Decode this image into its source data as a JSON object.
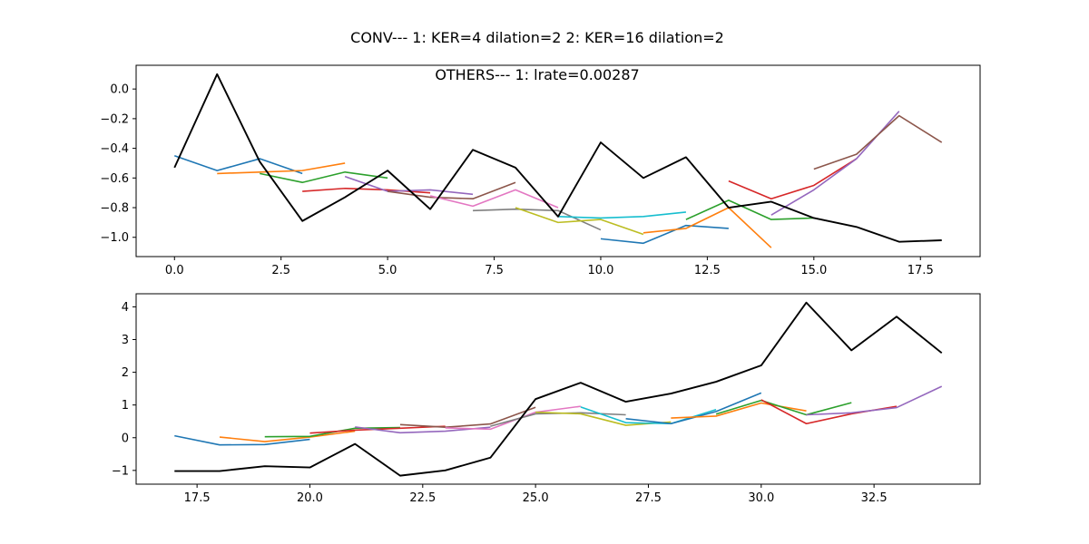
{
  "suptitle": "CONV--- 1: KER=4   dilation=2   2: KER=16   dilation=2",
  "palette": [
    "#1f77b4",
    "#ff7f0e",
    "#2ca02c",
    "#d62728",
    "#9467bd",
    "#8c564b",
    "#e377c2",
    "#7f7f7f",
    "#bcbd22",
    "#17becf"
  ],
  "chart_data": [
    {
      "type": "line",
      "title": "OTHERS--- 1: lrate=0.00287",
      "xlim": [
        -0.9,
        18.9
      ],
      "ylim": [
        -1.13,
        0.16
      ],
      "xticks": [
        0.0,
        2.5,
        5.0,
        7.5,
        10.0,
        12.5,
        15.0,
        17.5
      ],
      "xtick_labels": [
        "0.0",
        "2.5",
        "5.0",
        "7.5",
        "10.0",
        "12.5",
        "15.0",
        "17.5"
      ],
      "yticks": [
        0.0,
        -0.2,
        -0.4,
        -0.6,
        -0.8,
        -1.0
      ],
      "ytick_labels": [
        "0.0",
        "−0.2",
        "−0.4",
        "−0.6",
        "−0.8",
        "−1.0"
      ],
      "main_series": {
        "name": "actual",
        "color": "#000000",
        "x": [
          0,
          1,
          2,
          3,
          4,
          5,
          6,
          7,
          8,
          9,
          10,
          11,
          12,
          13,
          14,
          15,
          16,
          17,
          18
        ],
        "y": [
          -0.53,
          0.1,
          -0.49,
          -0.89,
          -0.73,
          -0.55,
          -0.81,
          -0.41,
          -0.53,
          -0.86,
          -0.36,
          -0.6,
          -0.46,
          -0.8,
          -0.76,
          -0.87,
          -0.93,
          -1.03,
          -1.02
        ]
      },
      "series": [
        {
          "x": [
            0,
            1,
            2,
            3
          ],
          "y": [
            -0.45,
            -0.55,
            -0.47,
            -0.57
          ]
        },
        {
          "x": [
            1,
            2,
            3,
            4
          ],
          "y": [
            -0.57,
            -0.56,
            -0.55,
            -0.5
          ]
        },
        {
          "x": [
            2,
            3,
            4,
            5
          ],
          "y": [
            -0.57,
            -0.63,
            -0.56,
            -0.6
          ]
        },
        {
          "x": [
            3,
            4,
            5,
            6
          ],
          "y": [
            -0.69,
            -0.67,
            -0.68,
            -0.7
          ]
        },
        {
          "x": [
            4,
            5,
            6,
            7
          ],
          "y": [
            -0.59,
            -0.69,
            -0.68,
            -0.71
          ]
        },
        {
          "x": [
            5,
            6,
            7,
            8
          ],
          "y": [
            -0.69,
            -0.73,
            -0.74,
            -0.63
          ]
        },
        {
          "x": [
            6,
            7,
            8,
            9
          ],
          "y": [
            -0.72,
            -0.79,
            -0.68,
            -0.8
          ]
        },
        {
          "x": [
            7,
            8,
            9,
            10
          ],
          "y": [
            -0.82,
            -0.81,
            -0.82,
            -0.95
          ]
        },
        {
          "x": [
            8,
            9,
            10,
            11
          ],
          "y": [
            -0.8,
            -0.9,
            -0.88,
            -0.98
          ]
        },
        {
          "x": [
            9,
            10,
            11,
            12
          ],
          "y": [
            -0.86,
            -0.87,
            -0.86,
            -0.83
          ]
        },
        {
          "x": [
            10,
            11,
            12,
            13
          ],
          "y": [
            -1.01,
            -1.04,
            -0.92,
            -0.94
          ]
        },
        {
          "x": [
            11,
            12,
            13,
            14
          ],
          "y": [
            -0.97,
            -0.94,
            -0.8,
            -1.07
          ]
        },
        {
          "x": [
            12,
            13,
            14,
            15
          ],
          "y": [
            -0.88,
            -0.75,
            -0.88,
            -0.87
          ]
        },
        {
          "x": [
            13,
            14,
            15,
            16
          ],
          "y": [
            -0.62,
            -0.74,
            -0.65,
            -0.47
          ]
        },
        {
          "x": [
            14,
            15,
            16,
            17
          ],
          "y": [
            -0.85,
            -0.68,
            -0.47,
            -0.15
          ]
        },
        {
          "x": [
            15,
            16,
            17,
            18
          ],
          "y": [
            -0.54,
            -0.44,
            -0.18,
            -0.36
          ]
        }
      ]
    },
    {
      "type": "line",
      "title": "",
      "xlim": [
        16.15,
        34.85
      ],
      "ylim": [
        -1.42,
        4.4
      ],
      "xticks": [
        17.5,
        20.0,
        22.5,
        25.0,
        27.5,
        30.0,
        32.5
      ],
      "xtick_labels": [
        "17.5",
        "20.0",
        "22.5",
        "25.0",
        "27.5",
        "30.0",
        "32.5"
      ],
      "yticks": [
        -1,
        0,
        1,
        2,
        3,
        4
      ],
      "ytick_labels": [
        "−1",
        "0",
        "1",
        "2",
        "3",
        "4"
      ],
      "main_series": {
        "name": "actual",
        "color": "#000000",
        "x": [
          17,
          18,
          19,
          20,
          21,
          22,
          23,
          24,
          25,
          26,
          27,
          28,
          29,
          30,
          31,
          32,
          33,
          34
        ],
        "y": [
          -1.02,
          -1.02,
          -0.87,
          -0.91,
          -0.19,
          -1.16,
          -1.0,
          -0.61,
          1.18,
          1.68,
          1.1,
          1.35,
          1.71,
          2.21,
          4.13,
          2.67,
          3.7,
          2.59
        ]
      },
      "series": [
        {
          "x": [
            17,
            18,
            19,
            20
          ],
          "y": [
            0.06,
            -0.22,
            -0.21,
            -0.05
          ]
        },
        {
          "x": [
            18,
            19,
            20,
            21
          ],
          "y": [
            0.02,
            -0.12,
            0.02,
            0.2
          ]
        },
        {
          "x": [
            19,
            20,
            21,
            22
          ],
          "y": [
            0.03,
            0.04,
            0.29,
            0.31
          ]
        },
        {
          "x": [
            20,
            21,
            22,
            23
          ],
          "y": [
            0.14,
            0.23,
            0.29,
            0.35
          ]
        },
        {
          "x": [
            21,
            22,
            23,
            24
          ],
          "y": [
            0.33,
            0.15,
            0.2,
            0.32
          ]
        },
        {
          "x": [
            22,
            23,
            24,
            25
          ],
          "y": [
            0.4,
            0.32,
            0.42,
            0.93
          ]
        },
        {
          "x": [
            23,
            24,
            25,
            26
          ],
          "y": [
            0.3,
            0.26,
            0.78,
            0.96
          ]
        },
        {
          "x": [
            24,
            25,
            26,
            27
          ],
          "y": [
            0.35,
            0.73,
            0.76,
            0.7
          ]
        },
        {
          "x": [
            25,
            26,
            27,
            28
          ],
          "y": [
            0.78,
            0.73,
            0.38,
            0.48
          ]
        },
        {
          "x": [
            26,
            27,
            28,
            29
          ],
          "y": [
            0.94,
            0.46,
            0.43,
            0.86
          ]
        },
        {
          "x": [
            27,
            28,
            29,
            30
          ],
          "y": [
            0.58,
            0.43,
            0.8,
            1.37
          ]
        },
        {
          "x": [
            28,
            29,
            30,
            31
          ],
          "y": [
            0.6,
            0.66,
            1.06,
            0.82
          ]
        },
        {
          "x": [
            29,
            30,
            31,
            32
          ],
          "y": [
            0.72,
            1.14,
            0.7,
            1.07
          ]
        },
        {
          "x": [
            30,
            31,
            32,
            33
          ],
          "y": [
            1.16,
            0.43,
            0.73,
            0.96
          ]
        },
        {
          "x": [
            31,
            32,
            33,
            34
          ],
          "y": [
            0.7,
            0.76,
            0.92,
            1.57
          ]
        }
      ]
    }
  ]
}
